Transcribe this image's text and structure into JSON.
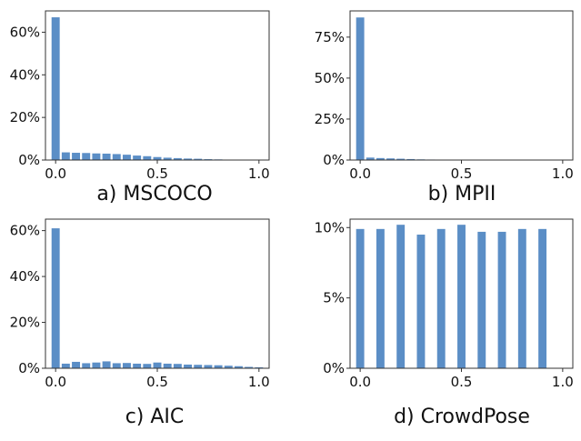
{
  "chart_data": [
    {
      "type": "bar",
      "caption": "a) MSCOCO",
      "xlim": [
        -0.05,
        1.05
      ],
      "ylim": [
        0,
        0.7
      ],
      "xticks": [
        0.0,
        0.5,
        1.0
      ],
      "xtick_labels": [
        "0.0",
        "0.5",
        "1.0"
      ],
      "yticks": [
        0,
        0.2,
        0.4,
        0.6
      ],
      "ytick_labels": [
        "0%",
        "20%",
        "40%",
        "60%"
      ],
      "bar_width": 0.04,
      "x": [
        0.0,
        0.05,
        0.1,
        0.15,
        0.2,
        0.25,
        0.3,
        0.35,
        0.4,
        0.45,
        0.5,
        0.55,
        0.6,
        0.65,
        0.7,
        0.75,
        0.8,
        0.85,
        0.9,
        0.95,
        1.0
      ],
      "values": [
        0.67,
        0.036,
        0.034,
        0.033,
        0.031,
        0.03,
        0.028,
        0.025,
        0.021,
        0.018,
        0.014,
        0.011,
        0.009,
        0.007,
        0.006,
        0.004,
        0.003,
        0.002,
        0.002,
        0.001,
        0.001
      ],
      "color": "#5b8ec6"
    },
    {
      "type": "bar",
      "caption": "b) MPII",
      "xlim": [
        -0.05,
        1.05
      ],
      "ylim": [
        0,
        0.91
      ],
      "xticks": [
        0.0,
        0.5,
        1.0
      ],
      "xtick_labels": [
        "0.0",
        "0.5",
        "1.0"
      ],
      "yticks": [
        0,
        0.25,
        0.5,
        0.75
      ],
      "ytick_labels": [
        "0%",
        "25%",
        "50%",
        "75%"
      ],
      "bar_width": 0.04,
      "x": [
        0.0,
        0.05,
        0.1,
        0.15,
        0.2,
        0.25,
        0.3,
        0.35,
        0.4,
        0.45,
        0.5
      ],
      "values": [
        0.87,
        0.015,
        0.012,
        0.01,
        0.008,
        0.006,
        0.004,
        0.003,
        0.002,
        0.001,
        0.001
      ],
      "color": "#5b8ec6"
    },
    {
      "type": "bar",
      "caption": "c) AIC",
      "xlim": [
        -0.05,
        1.05
      ],
      "ylim": [
        0,
        0.65
      ],
      "xticks": [
        0.0,
        0.5,
        1.0
      ],
      "xtick_labels": [
        "0.0",
        "0.5",
        "1.0"
      ],
      "yticks": [
        0,
        0.2,
        0.4,
        0.6
      ],
      "ytick_labels": [
        "0%",
        "20%",
        "40%",
        "60%"
      ],
      "bar_width": 0.04,
      "x": [
        0.0,
        0.05,
        0.1,
        0.15,
        0.2,
        0.25,
        0.3,
        0.35,
        0.4,
        0.45,
        0.5,
        0.55,
        0.6,
        0.65,
        0.7,
        0.75,
        0.8,
        0.85,
        0.9,
        0.95,
        1.0
      ],
      "values": [
        0.61,
        0.02,
        0.028,
        0.022,
        0.025,
        0.03,
        0.022,
        0.023,
        0.02,
        0.019,
        0.025,
        0.02,
        0.019,
        0.016,
        0.015,
        0.014,
        0.013,
        0.011,
        0.009,
        0.006,
        0.004
      ],
      "color": "#5b8ec6"
    },
    {
      "type": "bar",
      "caption": "d) CrowdPose",
      "xlim": [
        -0.05,
        1.05
      ],
      "ylim": [
        0,
        0.106
      ],
      "xticks": [
        0.0,
        0.5,
        1.0
      ],
      "xtick_labels": [
        "0.0",
        "0.5",
        "1.0"
      ],
      "yticks": [
        0,
        0.05,
        0.1
      ],
      "ytick_labels": [
        "0%",
        "5%",
        "10%"
      ],
      "bar_width": 0.04,
      "x": [
        0.0,
        0.1,
        0.2,
        0.3,
        0.4,
        0.5,
        0.6,
        0.7,
        0.8,
        0.9
      ],
      "values": [
        0.099,
        0.099,
        0.102,
        0.095,
        0.099,
        0.102,
        0.097,
        0.097,
        0.099,
        0.099
      ],
      "color": "#5b8ec6"
    }
  ]
}
